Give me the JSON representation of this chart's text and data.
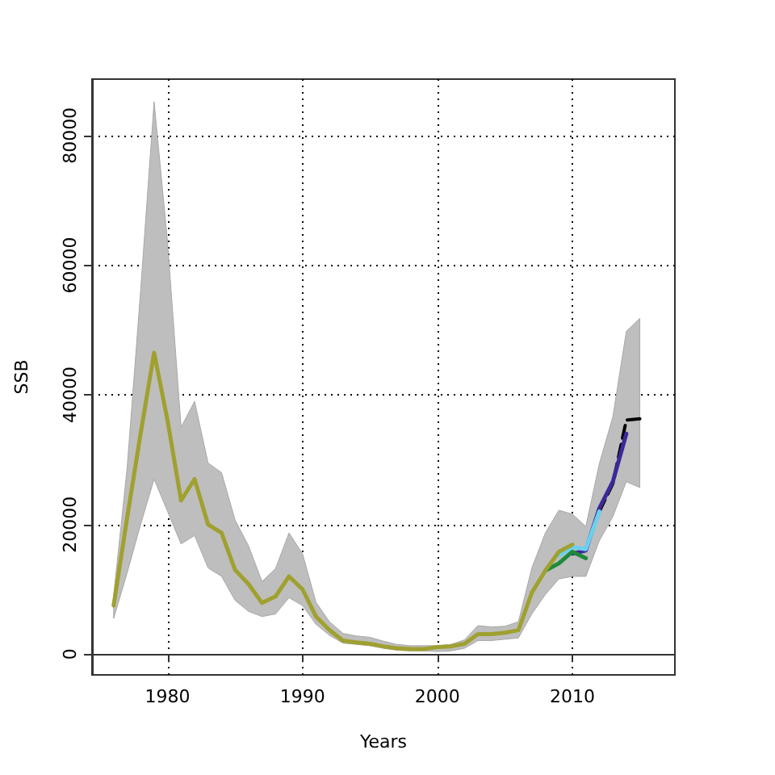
{
  "chart_data": {
    "type": "line",
    "xlabel": "Years",
    "ylabel": "SSB",
    "x": [
      1976,
      1977,
      1978,
      1979,
      1980,
      1981,
      1982,
      1983,
      1984,
      1985,
      1986,
      1987,
      1988,
      1989,
      1990,
      1991,
      1992,
      1993,
      1994,
      1995,
      1996,
      1997,
      1998,
      1999,
      2000,
      2001,
      2002,
      2003,
      2004,
      2005,
      2006,
      2007,
      2008,
      2009,
      2010,
      2011,
      2012,
      2013,
      2014,
      2015
    ],
    "series": [
      {
        "color": "#000000",
        "line_style": "dashed",
        "values": [
          null,
          null,
          null,
          null,
          null,
          null,
          null,
          null,
          null,
          null,
          null,
          null,
          null,
          null,
          null,
          null,
          null,
          null,
          null,
          null,
          null,
          null,
          null,
          null,
          null,
          null,
          null,
          null,
          null,
          null,
          null,
          null,
          null,
          null,
          null,
          null,
          22000,
          26300,
          36100,
          36300
        ],
        "lower": [
          5500,
          12500,
          20000,
          27000,
          22000,
          17000,
          18300,
          13300,
          12000,
          8300,
          6600,
          5800,
          6200,
          8700,
          7500,
          4600,
          2900,
          1700,
          1500,
          1300,
          900,
          600,
          500,
          500,
          400,
          500,
          900,
          2100,
          2100,
          2300,
          2500,
          6200,
          9200,
          11600,
          12000,
          12000,
          17500,
          21200,
          26600,
          25700
        ],
        "upper": [
          9000,
          28700,
          56000,
          85200,
          63500,
          35000,
          39000,
          29500,
          28000,
          20700,
          16700,
          11200,
          13200,
          18700,
          15500,
          8000,
          5000,
          3200,
          2800,
          2600,
          2000,
          1500,
          1300,
          1300,
          1300,
          1500,
          2200,
          4400,
          4200,
          4300,
          5000,
          13300,
          18700,
          22200,
          21600,
          19700,
          29400,
          36600,
          49800,
          51800
        ]
      },
      {
        "color": "#3a2a9a",
        "line_style": "solid",
        "values": [
          null,
          null,
          null,
          null,
          null,
          null,
          null,
          null,
          null,
          null,
          null,
          null,
          null,
          null,
          null,
          null,
          null,
          null,
          null,
          null,
          null,
          null,
          null,
          null,
          null,
          null,
          null,
          null,
          null,
          null,
          null,
          null,
          null,
          null,
          15500,
          16000,
          22500,
          26600,
          34000,
          null
        ]
      },
      {
        "color": "#6ad0f0",
        "line_style": "solid",
        "values": [
          null,
          null,
          null,
          null,
          null,
          null,
          null,
          null,
          null,
          null,
          null,
          null,
          null,
          null,
          null,
          null,
          null,
          null,
          null,
          null,
          null,
          null,
          null,
          null,
          null,
          null,
          null,
          null,
          null,
          null,
          null,
          null,
          null,
          15200,
          16500,
          16200,
          22000,
          null,
          null,
          null
        ]
      },
      {
        "color": "#1f8a3a",
        "line_style": "solid",
        "values": [
          null,
          null,
          null,
          null,
          null,
          null,
          null,
          null,
          null,
          null,
          null,
          null,
          null,
          null,
          null,
          null,
          null,
          null,
          null,
          null,
          null,
          null,
          null,
          null,
          null,
          null,
          null,
          null,
          null,
          null,
          null,
          null,
          12900,
          14000,
          15800,
          14800,
          null,
          null,
          null,
          null
        ]
      },
      {
        "color": "#a0a030",
        "line_style": "solid",
        "values": [
          7500,
          21000,
          34000,
          46500,
          36000,
          23700,
          27000,
          20000,
          18700,
          13000,
          10800,
          7900,
          8900,
          12000,
          10000,
          5800,
          3700,
          2100,
          1800,
          1600,
          1200,
          900,
          800,
          800,
          1100,
          1200,
          1600,
          3100,
          3100,
          3300,
          3700,
          9500,
          12900,
          15800,
          16900,
          null,
          null,
          null,
          null,
          null
        ]
      }
    ],
    "xlim": [
      1974.4,
      2017.6
    ],
    "xticks": [
      1980,
      1990,
      2000,
      2010
    ],
    "ylim": [
      -3200,
      88700
    ],
    "yticks": [
      0,
      20000,
      40000,
      60000,
      80000
    ],
    "grid": true,
    "marker": "none"
  }
}
